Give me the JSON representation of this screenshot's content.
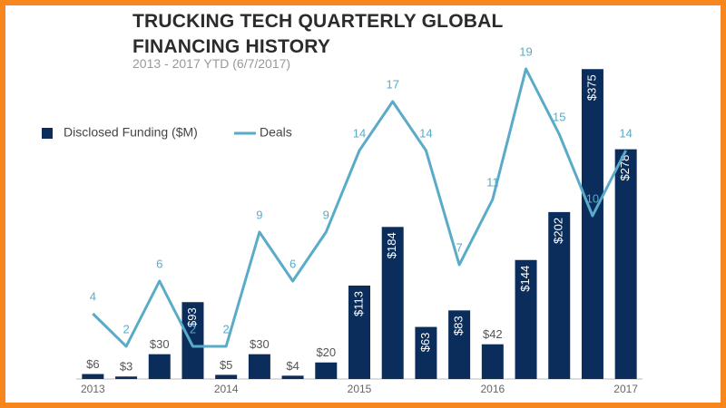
{
  "chart_data": {
    "type": "bar-line",
    "title": "TRUCKING TECH QUARTERLY GLOBAL FINANCING HISTORY",
    "subtitle": "2013 - 2017 YTD (6/7/2017)",
    "categories": [
      "2013",
      null,
      null,
      null,
      "2014",
      null,
      null,
      null,
      "2015",
      null,
      null,
      null,
      "2016",
      null,
      null,
      null,
      "2017"
    ],
    "series": [
      {
        "name": "Disclosed Funding ($M)",
        "color": "#0b2d5b",
        "type": "bar",
        "values": [
          6,
          3,
          30,
          93,
          5,
          30,
          4,
          20,
          113,
          184,
          63,
          83,
          42,
          144,
          202,
          375,
          278
        ],
        "value_labels": [
          "$6",
          "$3",
          "$30",
          "$93",
          "$5",
          "$30",
          "$4",
          "$20",
          "$113",
          "$184",
          "$63",
          "$83",
          "$42",
          "$144",
          "$202",
          "$375",
          "$278"
        ]
      },
      {
        "name": "Deals",
        "color": "#5aabc8",
        "type": "line",
        "axis": "y2",
        "values": [
          4,
          2,
          6,
          2,
          2,
          9,
          6,
          9,
          14,
          17,
          14,
          7,
          11,
          19,
          15,
          10,
          14
        ]
      }
    ],
    "ylim": [
      0,
      395
    ],
    "y2lim": [
      0,
      20
    ],
    "legend": "top-left"
  }
}
